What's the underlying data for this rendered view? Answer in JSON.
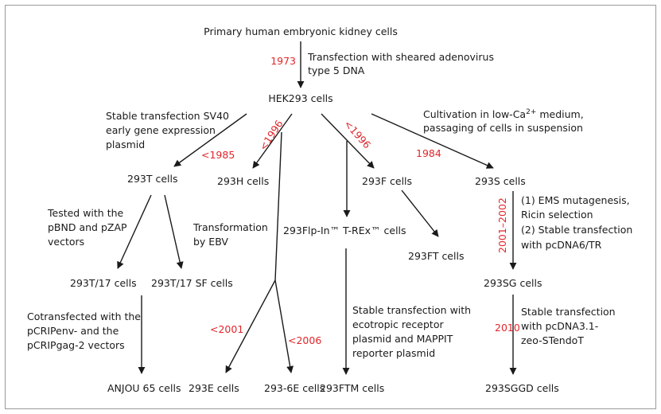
{
  "colors": {
    "year": "#e0262b",
    "text": "#1a1a1a"
  },
  "nodes": {
    "primary": "Primary human embryonic kidney cells",
    "hek293": "HEK293 cells",
    "t293": "293T cells",
    "h293": "293H cells",
    "f293": "293F cells",
    "s293": "293S cells",
    "flpin": "293Flp-In™ T-REx™ cells",
    "ft293": "293FT cells",
    "t17": "293T/17 cells",
    "t17sf": "293T/17 SF cells",
    "sg293": "293SG cells",
    "anjou": "ANJOU 65 cells",
    "e293": "293E cells",
    "e6293": "293-6E cells",
    "ftm293": "293FTM cells",
    "sggd293": "293SGGD cells"
  },
  "years": {
    "y1973": "1973",
    "y1985": "<1985",
    "y1996a": "<1996",
    "y1996b": "<1996",
    "y1984": "1984",
    "y2001_2002": "2001–2002",
    "y2001": "<2001",
    "y2006": "<2006",
    "y2010": "2010"
  },
  "annotations": {
    "adeno": [
      "Transfection with sheared adenovirus",
      "type 5 DNA"
    ],
    "sv40": [
      "Stable transfection SV40",
      "early gene expression",
      "plasmid"
    ],
    "cultivation": [
      "Cultivation in low-Ca",
      "2+",
      " medium,",
      "passaging of cells in suspension"
    ],
    "tested": [
      "Tested with the",
      "pBND and pZAP",
      "vectors"
    ],
    "ebv": [
      "Transformation",
      "by EBV"
    ],
    "ems": [
      "(1) EMS mutagenesis,",
      "Ricin selection",
      "(2) Stable transfection",
      "with pcDNA6/TR"
    ],
    "cotransfected": [
      "Cotransfected with the",
      "pCRIPenv- and the",
      "pCRIPgag-2 vectors"
    ],
    "ecotropic": [
      "Stable transfection with",
      "ecotropic receptor",
      "plasmid and MAPPIT",
      "reporter plasmid"
    ],
    "stendot": [
      "Stable transfection",
      "with pcDNA3.1-",
      "zeo-STendoT"
    ]
  }
}
